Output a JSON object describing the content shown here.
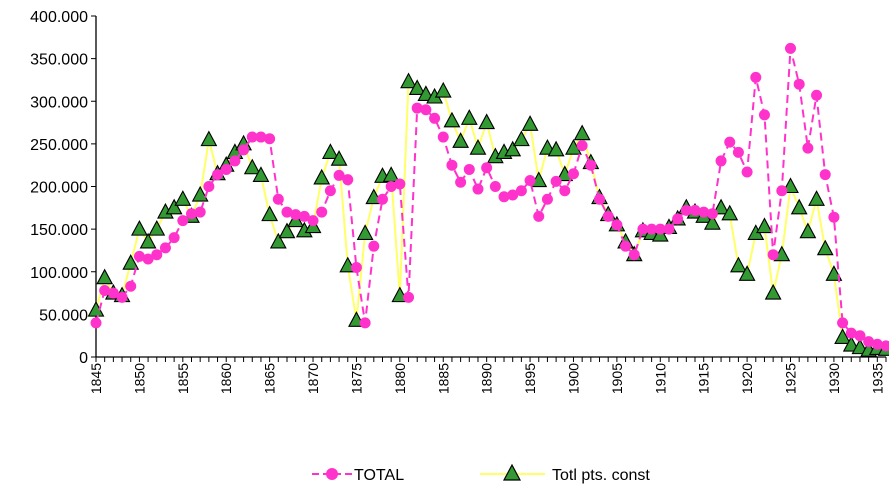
{
  "chart_data": {
    "type": "line",
    "title": "",
    "xlabel": "",
    "ylabel": "",
    "xlim": [
      1845,
      1936
    ],
    "ylim": [
      0,
      400000
    ],
    "y_ticks": [
      {
        "value": 0,
        "label": "0"
      },
      {
        "value": 50000,
        "label": "50.000"
      },
      {
        "value": 100000,
        "label": "100.000"
      },
      {
        "value": 150000,
        "label": "150.000"
      },
      {
        "value": 200000,
        "label": "200.000"
      },
      {
        "value": 250000,
        "label": "250.000"
      },
      {
        "value": 300000,
        "label": "300.000"
      },
      {
        "value": 350000,
        "label": "350.000"
      },
      {
        "value": 400000,
        "label": "400.000"
      }
    ],
    "x_ticks": [
      {
        "value": 1845,
        "label": "1845"
      },
      {
        "value": 1850,
        "label": "1850"
      },
      {
        "value": 1855,
        "label": "1855"
      },
      {
        "value": 1860,
        "label": "1860"
      },
      {
        "value": 1865,
        "label": "1865"
      },
      {
        "value": 1870,
        "label": "1870"
      },
      {
        "value": 1875,
        "label": "1875"
      },
      {
        "value": 1880,
        "label": "1880"
      },
      {
        "value": 1885,
        "label": "1885"
      },
      {
        "value": 1890,
        "label": "1890"
      },
      {
        "value": 1895,
        "label": "1895"
      },
      {
        "value": 1900,
        "label": "1900"
      },
      {
        "value": 1905,
        "label": "1905"
      },
      {
        "value": 1910,
        "label": "1910"
      },
      {
        "value": 1915,
        "label": "1915"
      },
      {
        "value": 1920,
        "label": "1920"
      },
      {
        "value": 1925,
        "label": "1925"
      },
      {
        "value": 1930,
        "label": "1930"
      },
      {
        "value": 1935,
        "label": "1935"
      }
    ],
    "grid": false,
    "legend_position": "bottom",
    "x": [
      1845,
      1846,
      1847,
      1848,
      1849,
      1850,
      1851,
      1852,
      1853,
      1854,
      1855,
      1856,
      1857,
      1858,
      1859,
      1860,
      1861,
      1862,
      1863,
      1864,
      1865,
      1866,
      1867,
      1868,
      1869,
      1870,
      1871,
      1872,
      1873,
      1874,
      1875,
      1876,
      1877,
      1878,
      1879,
      1880,
      1881,
      1882,
      1883,
      1884,
      1885,
      1886,
      1887,
      1888,
      1889,
      1890,
      1891,
      1892,
      1893,
      1894,
      1895,
      1896,
      1897,
      1898,
      1899,
      1900,
      1901,
      1902,
      1903,
      1904,
      1905,
      1906,
      1907,
      1908,
      1909,
      1910,
      1911,
      1912,
      1913,
      1914,
      1915,
      1916,
      1917,
      1918,
      1919,
      1920,
      1921,
      1922,
      1923,
      1924,
      1925,
      1926,
      1927,
      1928,
      1929,
      1930,
      1931,
      1932,
      1933,
      1934,
      1935,
      1936
    ],
    "series": [
      {
        "name": "TOTAL",
        "color": "#ff33cc",
        "marker": "circle",
        "dash": "dashed",
        "values": [
          40000,
          78000,
          75000,
          70000,
          83000,
          118000,
          115000,
          120000,
          128000,
          140000,
          160000,
          168000,
          170000,
          200000,
          214000,
          220000,
          230000,
          243000,
          258000,
          258000,
          256000,
          185000,
          170000,
          167000,
          165000,
          160000,
          170000,
          195000,
          213000,
          208000,
          105000,
          40000,
          130000,
          185000,
          200000,
          203000,
          70000,
          292000,
          290000,
          280000,
          258000,
          225000,
          205000,
          220000,
          197000,
          222000,
          200000,
          188000,
          190000,
          195000,
          207000,
          165000,
          185000,
          206000,
          195000,
          215000,
          248000,
          225000,
          185000,
          165000,
          155000,
          130000,
          120000,
          150000,
          150000,
          150000,
          150000,
          162000,
          172000,
          172000,
          170000,
          168000,
          230000,
          252000,
          240000,
          217000,
          328000,
          284000,
          120000,
          195000,
          362000,
          320000,
          245000,
          307000,
          214000,
          164000,
          40000,
          28000,
          25000,
          18000,
          15000,
          13000
        ]
      },
      {
        "name": "Totl pts. const",
        "color": "#ffff66",
        "marker": "triangle",
        "dash": "solid",
        "values": [
          55000,
          93000,
          75000,
          72000,
          110000,
          150000,
          135000,
          150000,
          170000,
          175000,
          185000,
          165000,
          190000,
          255000,
          215000,
          225000,
          240000,
          250000,
          222000,
          213000,
          167000,
          135000,
          147000,
          160000,
          148000,
          153000,
          210000,
          240000,
          232000,
          107000,
          43000,
          145000,
          187000,
          212000,
          213000,
          72000,
          323000,
          315000,
          308000,
          305000,
          312000,
          277000,
          253000,
          280000,
          245000,
          275000,
          235000,
          240000,
          243000,
          255000,
          273000,
          207000,
          245000,
          243000,
          214000,
          245000,
          262000,
          228000,
          187000,
          167000,
          155000,
          135000,
          120000,
          148000,
          145000,
          143000,
          152000,
          162000,
          175000,
          170000,
          165000,
          157000,
          175000,
          168000,
          107000,
          97000,
          145000,
          153000,
          75000,
          120000,
          200000,
          175000,
          147000,
          185000,
          127000,
          97000,
          23000,
          14000,
          11000,
          8000,
          10000,
          9000
        ]
      }
    ]
  },
  "legend": {
    "items": [
      {
        "label": "TOTAL"
      },
      {
        "label": "Totl pts. const"
      }
    ]
  }
}
